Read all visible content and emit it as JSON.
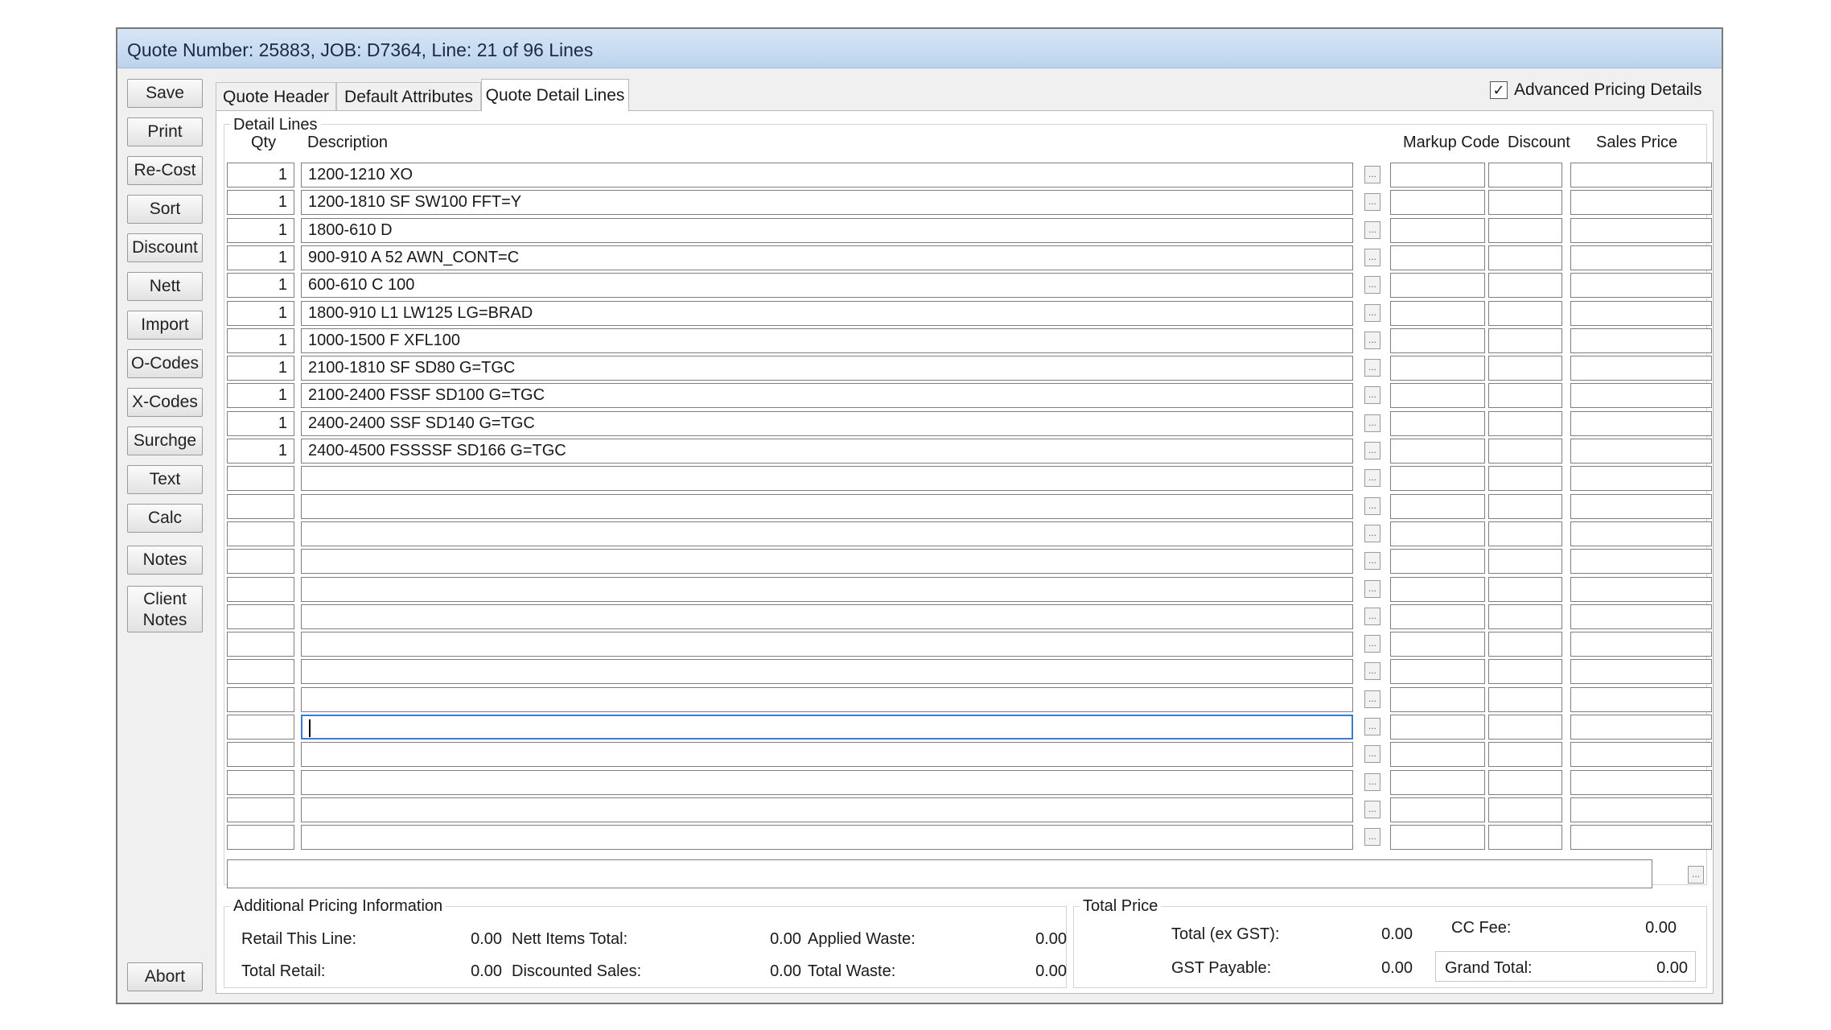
{
  "window": {
    "title": "Quote Number: 25883, JOB: D7364,  Line: 21 of 96 Lines"
  },
  "side_buttons": {
    "save": "Save",
    "print": "Print",
    "recost": "Re-Cost",
    "sort": "Sort",
    "discount": "Discount",
    "nett": "Nett",
    "import": "Import",
    "ocodes": "O-Codes",
    "xcodes": "X-Codes",
    "surchge": "Surchge",
    "text": "Text",
    "calc": "Calc",
    "notes": "Notes",
    "client_notes": "Client\nNotes",
    "abort": "Abort"
  },
  "tabs": [
    "Quote Header",
    "Default Attributes",
    "Quote Detail Lines"
  ],
  "active_tab": "Quote Detail Lines",
  "advanced_pricing": {
    "label": "Advanced Pricing Details",
    "checked": true,
    "check_glyph": "✓"
  },
  "detail_lines": {
    "group_label": "Detail Lines",
    "columns": {
      "qty": "Qty",
      "description": "Description",
      "markup_code": "Markup Code",
      "discount": "Discount",
      "sales_price": "Sales Price"
    },
    "rows": [
      {
        "qty": "1",
        "description": "1200-1210 XO"
      },
      {
        "qty": "1",
        "description": "1200-1810 SF SW100 FFT=Y"
      },
      {
        "qty": "1",
        "description": "1800-610 D"
      },
      {
        "qty": "1",
        "description": "900-910 A 52 AWN_CONT=C"
      },
      {
        "qty": "1",
        "description": "600-610 C 100"
      },
      {
        "qty": "1",
        "description": "1800-910 L1 LW125 LG=BRAD"
      },
      {
        "qty": "1",
        "description": "1000-1500 F XFL100"
      },
      {
        "qty": "1",
        "description": "2100-1810 SF SD80 G=TGC"
      },
      {
        "qty": "1",
        "description": "2100-2400 FSSF SD100 G=TGC"
      },
      {
        "qty": "1",
        "description": "2400-2400 SSF SD140 G=TGC"
      },
      {
        "qty": "1",
        "description": "2400-4500 FSSSSF SD166 G=TGC"
      },
      {
        "qty": "",
        "description": ""
      },
      {
        "qty": "",
        "description": ""
      },
      {
        "qty": "",
        "description": ""
      },
      {
        "qty": "",
        "description": ""
      },
      {
        "qty": "",
        "description": ""
      },
      {
        "qty": "",
        "description": ""
      },
      {
        "qty": "",
        "description": ""
      },
      {
        "qty": "",
        "description": ""
      },
      {
        "qty": "",
        "description": ""
      },
      {
        "qty": "",
        "description": ""
      },
      {
        "qty": "",
        "description": ""
      },
      {
        "qty": "",
        "description": ""
      },
      {
        "qty": "",
        "description": ""
      },
      {
        "qty": "",
        "description": ""
      }
    ],
    "focused_row_number": 21,
    "ellipsis": "..."
  },
  "additional_pricing": {
    "group_label": "Additional Pricing Information",
    "retail_this_line": {
      "label": "Retail This Line:",
      "value": "0.00"
    },
    "total_retail": {
      "label": "Total Retail:",
      "value": "0.00"
    },
    "nett_items_total": {
      "label": "Nett Items Total:",
      "value": "0.00"
    },
    "discounted_sales": {
      "label": "Discounted Sales:",
      "value": "0.00"
    },
    "applied_waste": {
      "label": "Applied Waste:",
      "value": "0.00"
    },
    "total_waste": {
      "label": "Total Waste:",
      "value": "0.00"
    }
  },
  "total_price": {
    "group_label": "Total Price",
    "total_ex_gst": {
      "label": "Total (ex GST):",
      "value": "0.00"
    },
    "gst_payable": {
      "label": "GST Payable:",
      "value": "0.00"
    },
    "cc_fee": {
      "label": "CC Fee:",
      "value": "0.00"
    },
    "grand_total": {
      "label": "Grand Total:",
      "value": "0.00"
    }
  }
}
